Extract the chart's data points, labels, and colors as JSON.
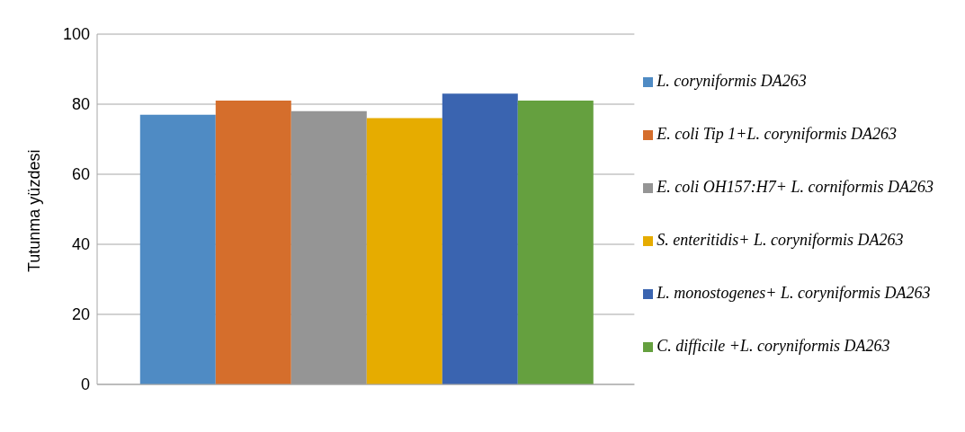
{
  "chart_data": {
    "type": "bar",
    "ylabel": "Tutunma yüzdesi",
    "categories": [
      null
    ],
    "ylim": [
      0,
      100
    ],
    "yticks": [
      0,
      20,
      40,
      60,
      80,
      100
    ],
    "grid": "y",
    "legend": "right",
    "series": [
      {
        "name": "L. coryniformis DA263",
        "color": "#4f8bc4",
        "values": [
          77
        ]
      },
      {
        "name": "E. coli Tip 1+L. coryniformis DA263",
        "color": "#d56e2c",
        "values": [
          81
        ]
      },
      {
        "name": "E. coli OH157:H7+ L. corniformis DA263",
        "color": "#959595",
        "values": [
          78
        ]
      },
      {
        "name": "S. enteritidis+ L. coryniformis DA263",
        "color": "#e6ac00",
        "values": [
          76
        ]
      },
      {
        "name": "L. monostogenes+ L. coryniformis DA263",
        "color": "#3a64b0",
        "values": [
          83
        ]
      },
      {
        "name": "C. difficile +L. coryniformis DA263",
        "color": "#65a03f",
        "values": [
          81
        ]
      }
    ]
  }
}
